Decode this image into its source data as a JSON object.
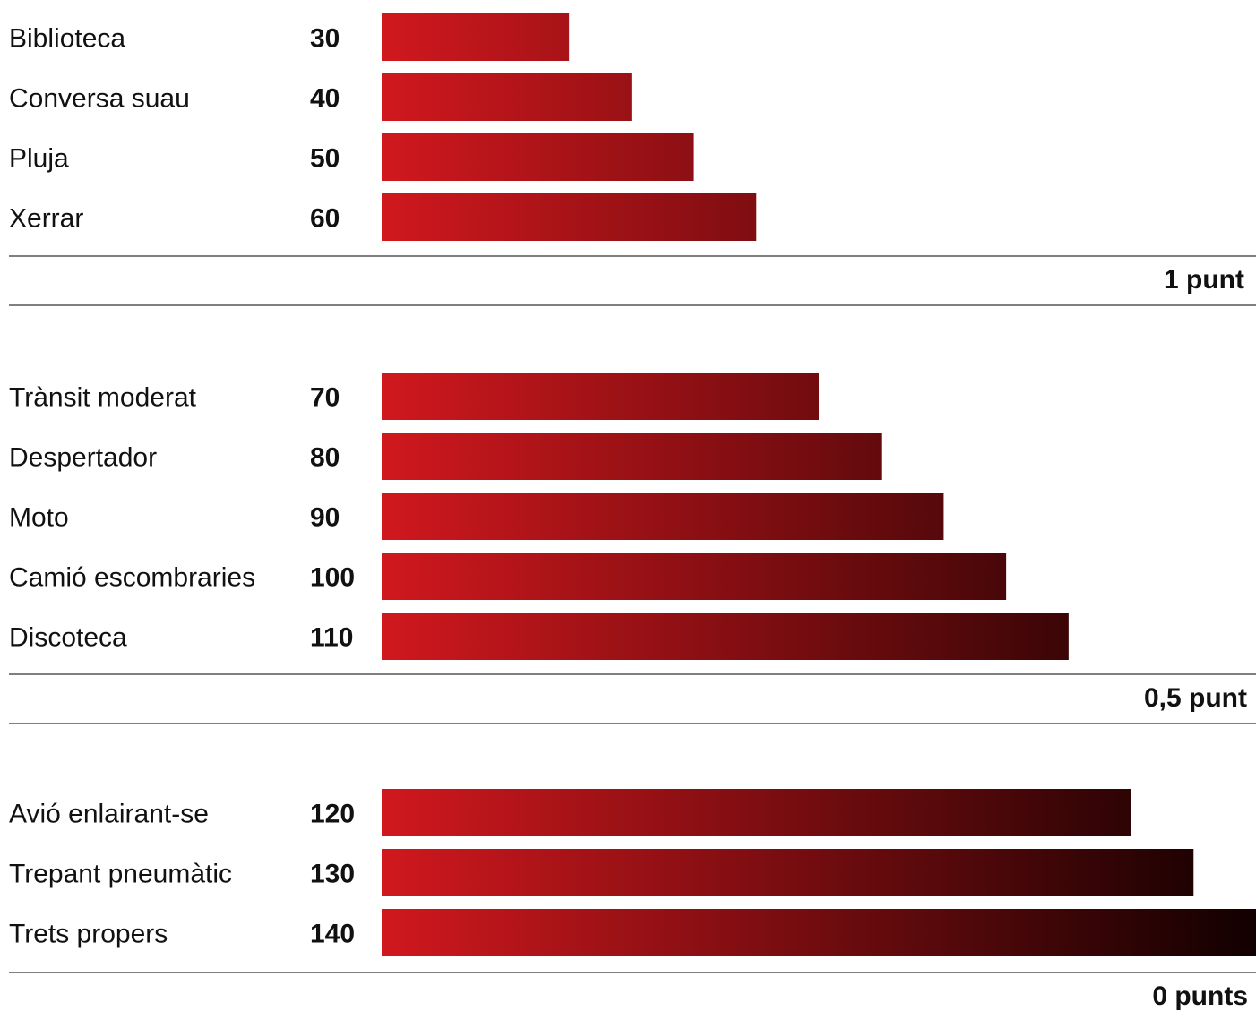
{
  "chart_data": {
    "type": "bar",
    "orientation": "horizontal",
    "gradient_colors": {
      "start": "#d0181e",
      "end": "#120000"
    },
    "groups": [
      {
        "label": "1 punt",
        "items": [
          {
            "category": "Biblioteca",
            "value": 30,
            "value_label": "30"
          },
          {
            "category": "Conversa suau",
            "value": 40,
            "value_label": "40"
          },
          {
            "category": "Pluja",
            "value": 50,
            "value_label": "50"
          },
          {
            "category": "Xerrar",
            "value": 60,
            "value_label": "60"
          }
        ]
      },
      {
        "label": "0,5 punt",
        "items": [
          {
            "category": "Trànsit moderat",
            "value": 70,
            "value_label": "70"
          },
          {
            "category": "Despertador",
            "value": 80,
            "value_label": "80"
          },
          {
            "category": "Moto",
            "value": 90,
            "value_label": "90"
          },
          {
            "category": "Camió escombraries",
            "value": 100,
            "value_label": "100"
          },
          {
            "category": "Discoteca",
            "value": 110,
            "value_label": "110"
          }
        ]
      },
      {
        "label": "0 punts",
        "items": [
          {
            "category": "Avió enlairant-se",
            "value": 120,
            "value_label": "120"
          },
          {
            "category": "Trepant pneumàtic",
            "value": 130,
            "value_label": "130"
          },
          {
            "category": "Trets propers",
            "value": 140,
            "value_label": "140"
          }
        ]
      }
    ],
    "xlim": [
      0,
      140
    ],
    "grid": false,
    "legend": "none"
  }
}
